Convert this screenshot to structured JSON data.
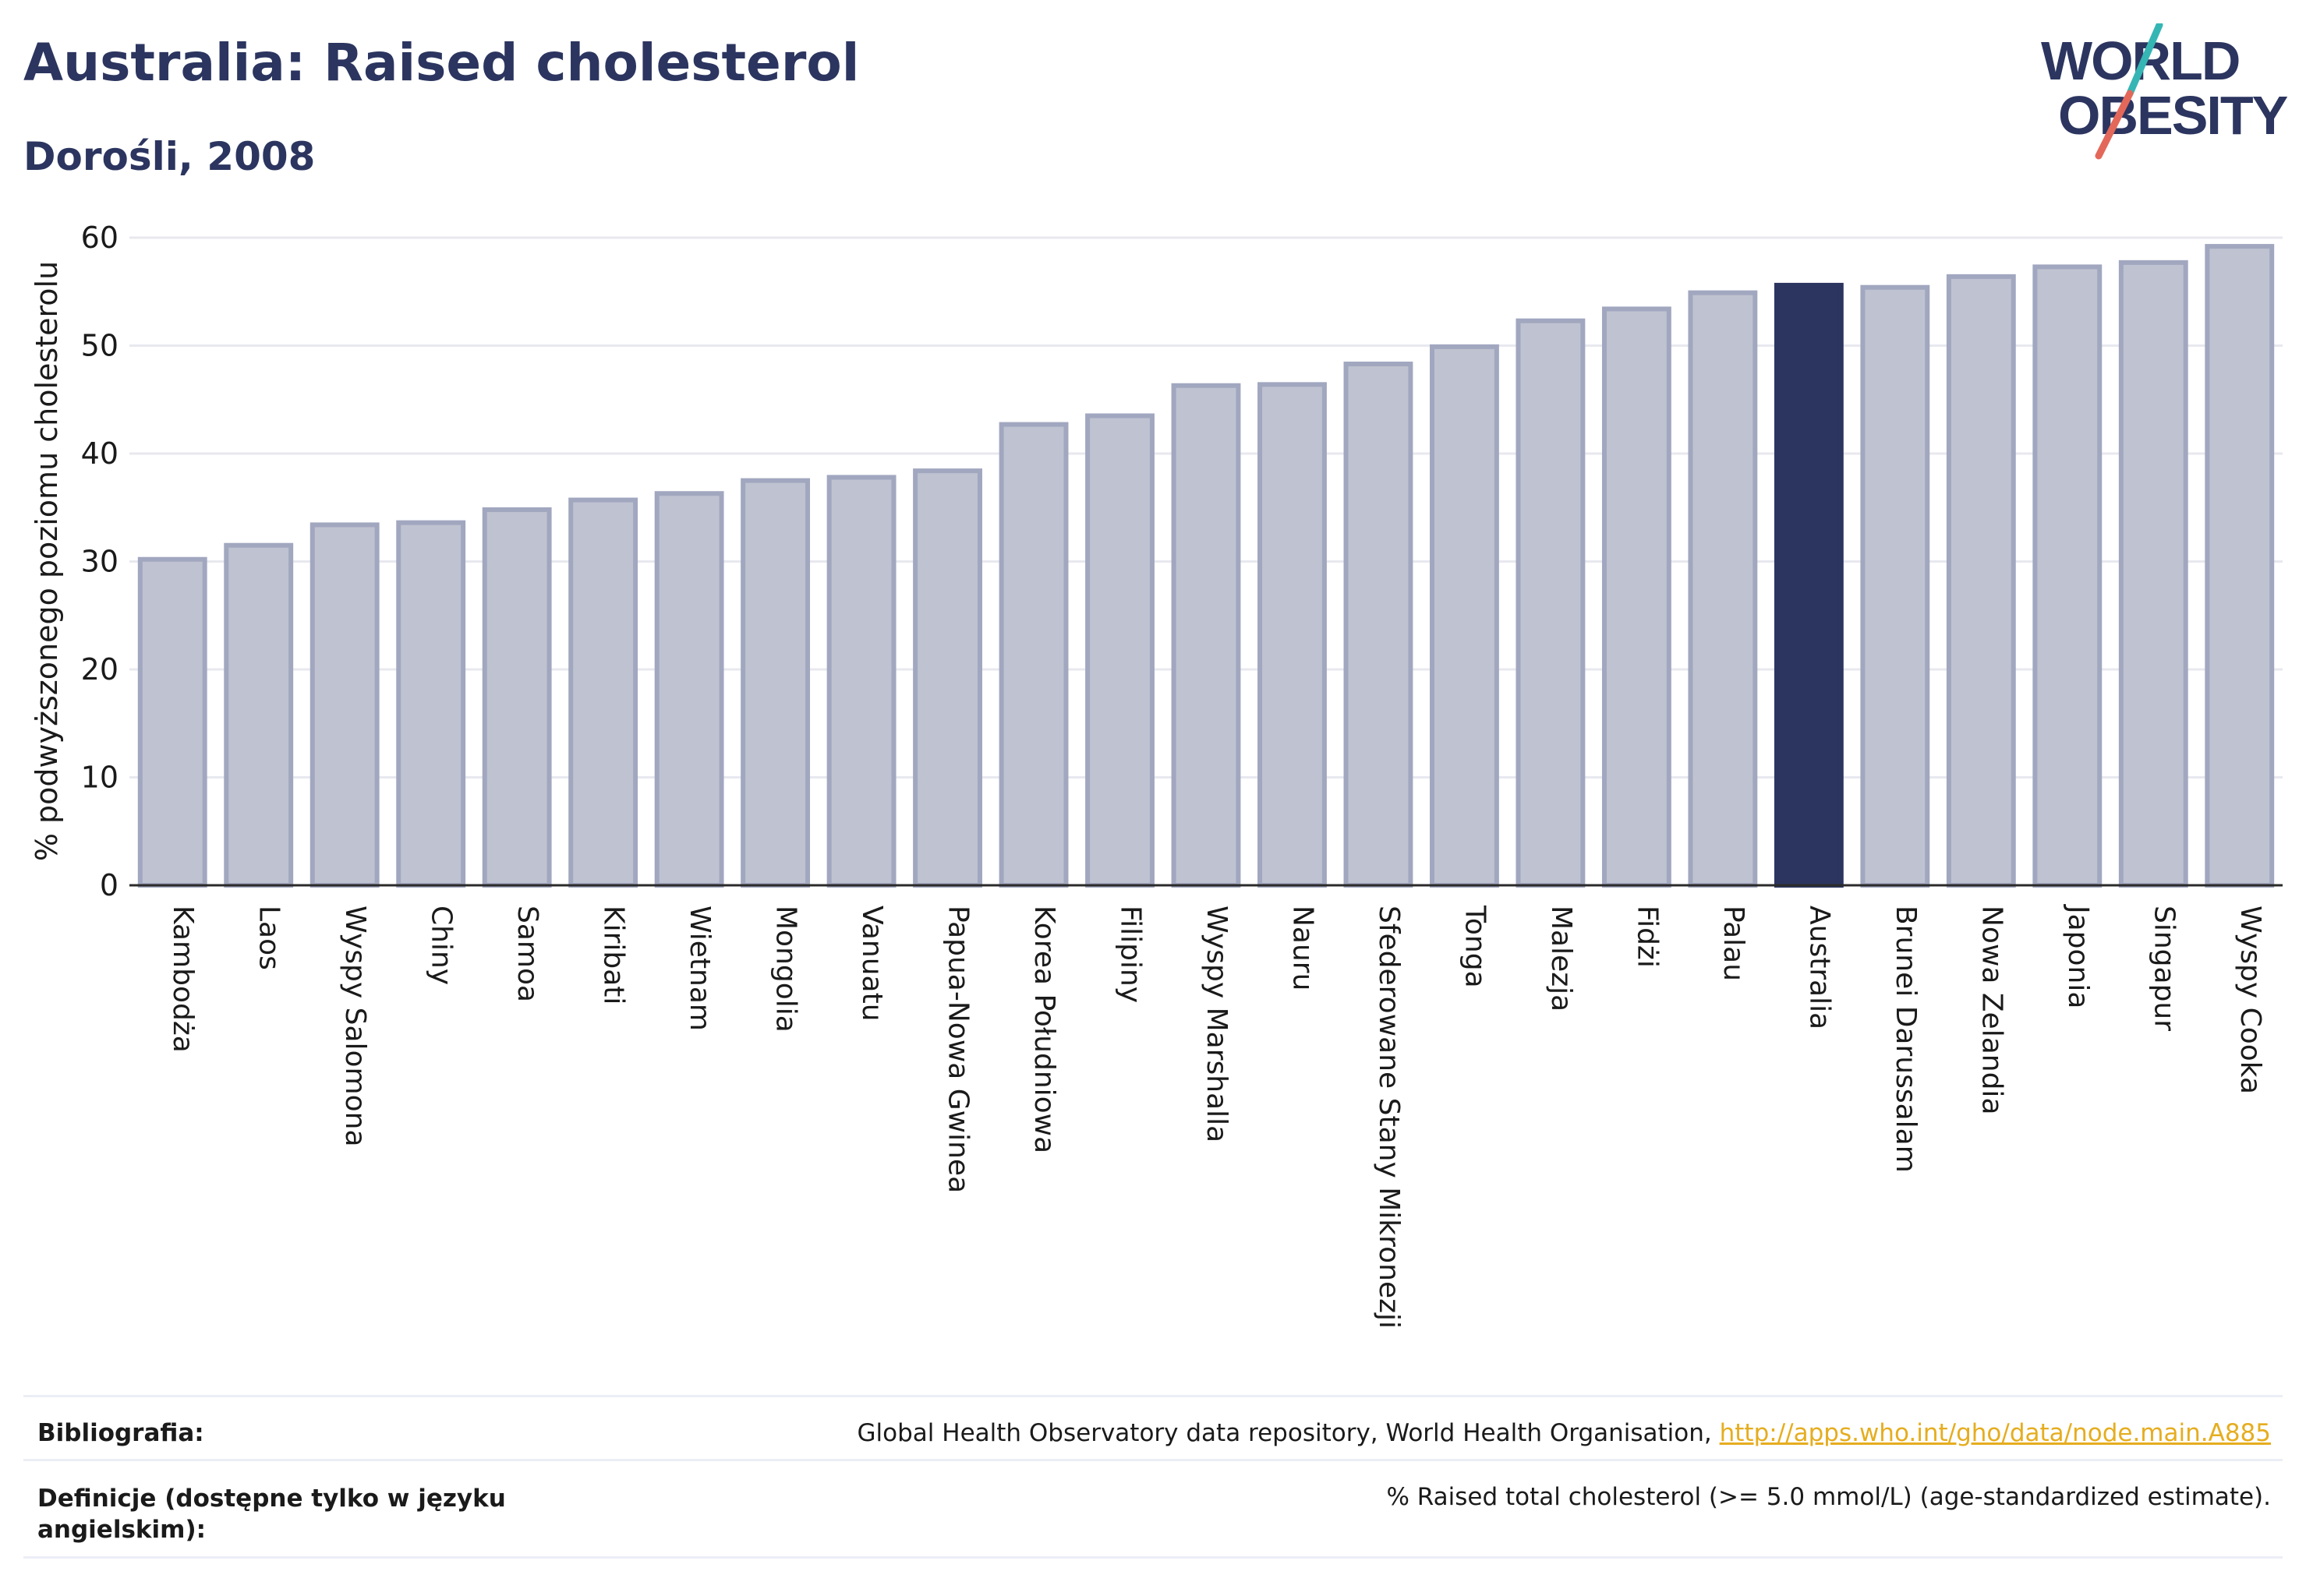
{
  "header": {
    "title": "Australia: Raised cholesterol",
    "subtitle": "Dorośli, 2008"
  },
  "logo": {
    "line1": "WORLD",
    "line2": "OBESITY",
    "colors": {
      "text": "#2b355f",
      "slash_top": "#35b6b4",
      "slash_bottom": "#e3685a"
    }
  },
  "chart_data": {
    "type": "bar",
    "ylabel": "% podwyższonego poziomu cholesterolu",
    "xlabel": "",
    "ylim": [
      0,
      60
    ],
    "yticks": [
      0,
      10,
      20,
      30,
      40,
      50,
      60
    ],
    "grid": true,
    "highlight": "Australia",
    "colors": {
      "bar": "#bfc2d0",
      "bar_border": "#a1a7bf",
      "highlight": "#2b355f"
    },
    "categories": [
      "Kambodża",
      "Laos",
      "Wyspy Salomona",
      "Chiny",
      "Samoa",
      "Kiribati",
      "Wietnam",
      "Mongolia",
      "Vanuatu",
      "Papua-Nowa Gwinea",
      "Korea Południowa",
      "Filipiny",
      "Wyspy Marshalla",
      "Nauru",
      "Sfederowane Stany Mikronezji",
      "Tonga",
      "Malezja",
      "Fidżi",
      "Palau",
      "Australia",
      "Brunei Darussalam",
      "Nowa Zelandia",
      "Japonia",
      "Singapur",
      "Wyspy Cooka"
    ],
    "values": [
      30.2,
      31.5,
      33.4,
      33.6,
      34.8,
      35.7,
      36.3,
      37.5,
      37.8,
      38.4,
      42.7,
      43.5,
      46.3,
      46.4,
      48.3,
      49.9,
      52.3,
      53.4,
      54.9,
      55.6,
      55.4,
      56.4,
      57.3,
      57.7,
      59.2
    ]
  },
  "footer": {
    "bibliography_label": "Bibliografia:",
    "bibliography_text": "Global Health Observatory data repository, World Health Organisation, ",
    "bibliography_link": "http://apps.who.int/gho/data/node.main.A885",
    "definitions_label_1": "Definicje (dostępne tylko w języku",
    "definitions_label_2": "angielskim):",
    "definitions_text": "% Raised total cholesterol (>= 5.0 mmol/L) (age-standardized estimate)."
  }
}
